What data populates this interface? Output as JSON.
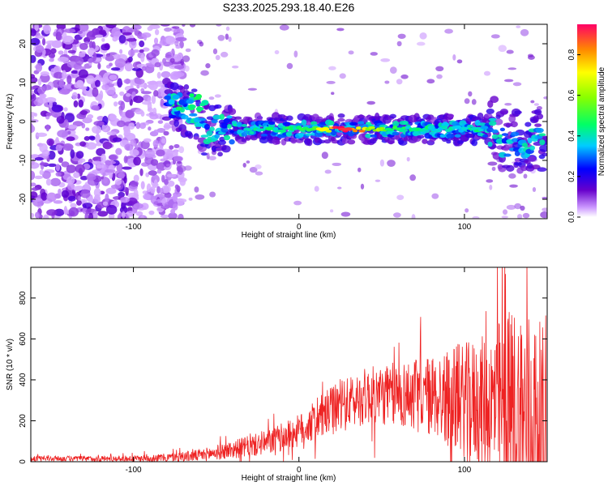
{
  "title": "S233.2025.293.18.40.E26",
  "chart_data": [
    {
      "type": "heatmap",
      "name": "spectrogram",
      "xlabel": "Height of straight line (km)",
      "ylabel": "Frequency (Hz)",
      "xlim": [
        -162,
        150
      ],
      "ylim": [
        -25,
        25
      ],
      "xticks": [
        -100,
        0,
        100
      ],
      "xtick_labels": [
        "-100",
        "0",
        "100"
      ],
      "yticks": [
        -20,
        -10,
        0,
        10,
        20
      ],
      "ytick_labels": [
        "-20",
        "-10",
        "0",
        "10",
        "20"
      ],
      "colorbar": {
        "label": "Normalized spectral amplitude",
        "range": [
          0,
          0.95
        ],
        "ticks": [
          0,
          0.2,
          0.4,
          0.6,
          0.8
        ],
        "tick_labels": [
          "0.0",
          "0.2",
          "0.4",
          "0.6",
          "0.8"
        ]
      },
      "features": {
        "noise_region_x": [
          -162,
          -80
        ],
        "signal_band_x": [
          -80,
          150
        ],
        "signal_band_center_hz": -2,
        "peak_x_km": 28,
        "peak_value": 0.95
      }
    },
    {
      "type": "line",
      "name": "snr",
      "xlabel": "Height of straight line (km)",
      "ylabel": "SNR (10 * v/v)",
      "xlim": [
        -162,
        150
      ],
      "ylim": [
        0,
        950
      ],
      "xticks": [
        -100,
        0,
        100
      ],
      "xtick_labels": [
        "-100",
        "0",
        "100"
      ],
      "yticks": [
        0,
        200,
        400,
        600,
        800
      ],
      "ytick_labels": [
        "0",
        "200",
        "400",
        "600",
        "800"
      ],
      "series": [
        {
          "name": "SNR",
          "color": "#ee2222",
          "envelope_x": [
            -162,
            -100,
            -80,
            -60,
            -40,
            -20,
            0,
            20,
            40,
            60,
            80,
            100,
            115,
            125,
            135,
            150
          ],
          "envelope_mean": [
            15,
            15,
            20,
            30,
            60,
            90,
            150,
            250,
            320,
            330,
            320,
            300,
            280,
            250,
            200,
            140
          ],
          "envelope_amp": [
            12,
            15,
            20,
            30,
            45,
            60,
            80,
            120,
            140,
            160,
            200,
            280,
            350,
            500,
            600,
            500
          ]
        }
      ]
    }
  ]
}
